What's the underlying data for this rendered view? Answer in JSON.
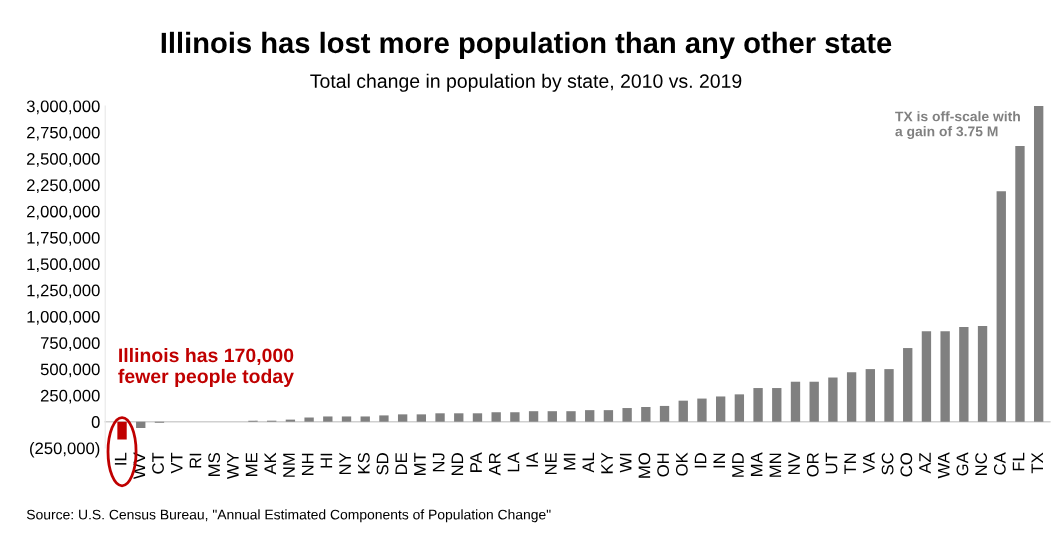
{
  "chart_data": {
    "type": "bar",
    "title": "Illinois has lost more population than any other state",
    "subtitle": "Total change in population by state, 2010 vs. 2019",
    "categories": [
      "IL",
      "WV",
      "CT",
      "VT",
      "RI",
      "MS",
      "WY",
      "ME",
      "AK",
      "NM",
      "NH",
      "HI",
      "NY",
      "KS",
      "SD",
      "DE",
      "MT",
      "NJ",
      "ND",
      "PA",
      "AR",
      "LA",
      "IA",
      "NE",
      "MI",
      "AL",
      "KY",
      "WI",
      "MO",
      "OH",
      "OK",
      "ID",
      "IN",
      "MD",
      "MA",
      "MN",
      "NV",
      "OR",
      "UT",
      "TN",
      "VA",
      "SC",
      "CO",
      "AZ",
      "WA",
      "GA",
      "NC",
      "CA",
      "FL",
      "TX"
    ],
    "values": [
      -170000,
      -60000,
      -10000,
      0,
      0,
      0,
      0,
      10000,
      10000,
      20000,
      40000,
      50000,
      50000,
      50000,
      60000,
      70000,
      70000,
      80000,
      80000,
      80000,
      90000,
      90000,
      100000,
      100000,
      100000,
      110000,
      110000,
      130000,
      140000,
      150000,
      200000,
      220000,
      240000,
      260000,
      320000,
      320000,
      380000,
      380000,
      420000,
      470000,
      500000,
      500000,
      700000,
      860000,
      860000,
      900000,
      910000,
      2190000,
      2620000,
      3000000
    ],
    "colors": [
      "#c00000",
      "#808080",
      "#808080",
      "#808080",
      "#808080",
      "#808080",
      "#808080",
      "#808080",
      "#808080",
      "#808080",
      "#808080",
      "#808080",
      "#808080",
      "#808080",
      "#808080",
      "#808080",
      "#808080",
      "#808080",
      "#808080",
      "#808080",
      "#808080",
      "#808080",
      "#808080",
      "#808080",
      "#808080",
      "#808080",
      "#808080",
      "#808080",
      "#808080",
      "#808080",
      "#808080",
      "#808080",
      "#808080",
      "#808080",
      "#808080",
      "#808080",
      "#808080",
      "#808080",
      "#808080",
      "#808080",
      "#808080",
      "#808080",
      "#808080",
      "#808080",
      "#808080",
      "#808080",
      "#808080",
      "#808080",
      "#808080",
      "#808080"
    ],
    "ylim": [
      -250000,
      3000000
    ],
    "yticks": [
      {
        "value": -250000,
        "label": "(250,000)"
      },
      {
        "value": 0,
        "label": "0"
      },
      {
        "value": 250000,
        "label": "250,000"
      },
      {
        "value": 500000,
        "label": "500,000"
      },
      {
        "value": 750000,
        "label": "750,000"
      },
      {
        "value": 1000000,
        "label": "1,000,000"
      },
      {
        "value": 1250000,
        "label": "1,250,000"
      },
      {
        "value": 1500000,
        "label": "1,500,000"
      },
      {
        "value": 1750000,
        "label": "1,750,000"
      },
      {
        "value": 2000000,
        "label": "2,000,000"
      },
      {
        "value": 2250000,
        "label": "2,250,000"
      },
      {
        "value": 2500000,
        "label": "2,500,000"
      },
      {
        "value": 2750000,
        "label": "2,750,000"
      },
      {
        "value": 3000000,
        "label": "3,000,000"
      }
    ],
    "grid": false,
    "legend": false,
    "annotations": [
      {
        "text": "Illinois has 170,000\nfewer people today",
        "x": "IL",
        "y": -170000
      },
      "TX is off-scale with\na gain of 3.75 M",
      "Source: U.S. Census Bureau, \"Annual Estimated Components of Population Change\""
    ]
  }
}
